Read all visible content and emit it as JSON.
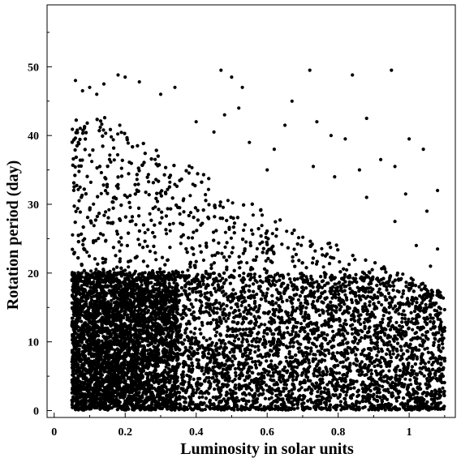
{
  "chart_data": {
    "type": "scatter",
    "title": "",
    "xlabel": "Luminosity in solar units",
    "ylabel": "Rotation period (day)",
    "xlim": [
      -0.02,
      1.13
    ],
    "ylim": [
      -1,
      59
    ],
    "x_ticks": [
      "0",
      "0.2",
      "0.4",
      "0.6",
      "0.8",
      "1"
    ],
    "y_ticks": [
      "0",
      "10",
      "20",
      "30",
      "40",
      "50"
    ],
    "grid": false,
    "legend": "none",
    "marker_color": "#000000",
    "series": [
      {
        "points": [
          [
            0.06,
            48.0
          ],
          [
            0.08,
            46.5
          ],
          [
            0.1,
            47.0
          ],
          [
            0.12,
            46.0
          ],
          [
            0.14,
            47.5
          ],
          [
            0.18,
            48.8
          ],
          [
            0.2,
            48.5
          ],
          [
            0.24,
            47.8
          ],
          [
            0.3,
            46.0
          ],
          [
            0.34,
            47.0
          ],
          [
            0.47,
            49.5
          ],
          [
            0.5,
            48.5
          ],
          [
            0.53,
            47.0
          ],
          [
            0.72,
            49.5
          ],
          [
            0.84,
            48.8
          ],
          [
            0.95,
            49.5
          ],
          [
            0.52,
            44.0
          ],
          [
            0.48,
            43.0
          ],
          [
            0.67,
            45.0
          ],
          [
            0.88,
            42.5
          ],
          [
            0.74,
            42.0
          ],
          [
            0.65,
            41.5
          ],
          [
            0.78,
            40.0
          ],
          [
            0.82,
            39.5
          ],
          [
            1.0,
            39.5
          ],
          [
            1.04,
            38.0
          ],
          [
            0.92,
            36.5
          ],
          [
            0.73,
            35.5
          ],
          [
            0.96,
            35.5
          ],
          [
            0.6,
            35.0
          ],
          [
            0.86,
            35.0
          ],
          [
            0.79,
            34.0
          ],
          [
            1.08,
            32.0
          ],
          [
            0.99,
            31.5
          ],
          [
            0.88,
            31.0
          ],
          [
            1.05,
            29.0
          ],
          [
            0.96,
            27.5
          ],
          [
            1.02,
            24.0
          ],
          [
            1.08,
            23.5
          ],
          [
            1.06,
            21.0
          ],
          [
            0.45,
            40.5
          ],
          [
            0.4,
            42.0
          ],
          [
            0.55,
            39.0
          ],
          [
            0.62,
            38.0
          ]
        ]
      }
    ]
  }
}
